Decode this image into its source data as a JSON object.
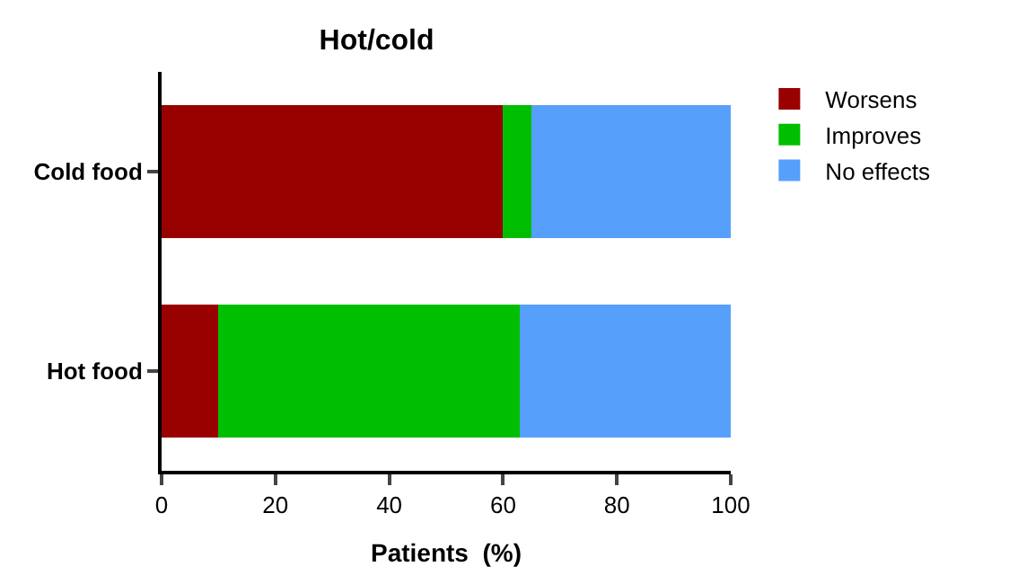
{
  "chart_data": {
    "type": "bar",
    "title": "Hot/cold",
    "xlabel": "Patients  (%)",
    "orientation": "horizontal",
    "stacked": true,
    "categories": [
      "Cold food",
      "Hot food"
    ],
    "series": [
      {
        "name": "Worsens",
        "color": "#990000",
        "values": [
          60,
          10
        ]
      },
      {
        "name": "Improves",
        "color": "#00bf00",
        "values": [
          5,
          53
        ]
      },
      {
        "name": "No effects",
        "color": "#56a0fb",
        "values": [
          35,
          37
        ]
      }
    ],
    "xlim": [
      0,
      100
    ],
    "xticks": [
      0,
      20,
      40,
      60,
      80,
      100
    ],
    "legend": "top right"
  }
}
